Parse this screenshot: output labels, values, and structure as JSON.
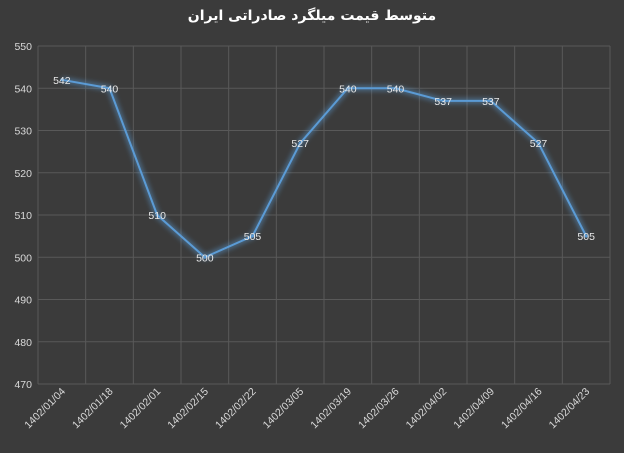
{
  "chart_data": {
    "type": "line",
    "title": "متوسط قیمت میلگرد صادراتی ایران",
    "categories": [
      "1402/01/04",
      "1402/01/18",
      "1402/02/01",
      "1402/02/15",
      "1402/02/22",
      "1402/03/05",
      "1402/03/19",
      "1402/03/26",
      "1402/04/02",
      "1402/04/09",
      "1402/04/16",
      "1402/04/23"
    ],
    "series": [
      {
        "values": [
          542,
          540,
          510,
          500,
          505,
          527,
          540,
          540,
          537,
          537,
          527,
          505
        ]
      }
    ],
    "ylim": [
      470,
      550
    ],
    "yticks": [
      470,
      480,
      490,
      500,
      510,
      520,
      530,
      540,
      550
    ],
    "grid": true,
    "legend": "none",
    "colors": {
      "background": "#3b3b3b",
      "grid": "#595959",
      "line": "#5b9bd5",
      "text": "#d9d9d9"
    }
  }
}
